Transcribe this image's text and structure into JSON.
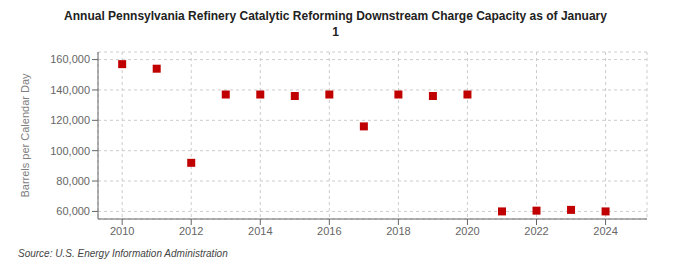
{
  "chart_data": {
    "type": "scatter",
    "title": "Annual Pennsylvania Refinery Catalytic Reforming Downstream Charge Capacity as of January\n1",
    "ylabel": "Barrels per Calendar Day",
    "annotations": [
      "Source: U.S. Energy Information Administration"
    ],
    "x": [
      2010,
      2011,
      2012,
      2013,
      2014,
      2015,
      2016,
      2017,
      2018,
      2019,
      2020,
      2021,
      2022,
      2023,
      2024
    ],
    "values": [
      157000,
      154000,
      92000,
      137000,
      137000,
      136000,
      137000,
      116000,
      137000,
      136000,
      137000,
      60000,
      60500,
      61000,
      60000
    ],
    "color": "#c00000",
    "marker": "square",
    "xlim": [
      2009.3,
      2025.2
    ],
    "xticks": [
      2010,
      2012,
      2014,
      2016,
      2018,
      2020,
      2022,
      2024
    ],
    "ylim": [
      55000,
      165000
    ],
    "yticks": [
      {
        "value": 60000,
        "label": "60,000"
      },
      {
        "value": 80000,
        "label": "80,000"
      },
      {
        "value": 100000,
        "label": "100,000"
      },
      {
        "value": 120000,
        "label": "120,000"
      },
      {
        "value": 140000,
        "label": "140,000"
      },
      {
        "value": 160000,
        "label": "160,000"
      }
    ],
    "grid": true
  }
}
